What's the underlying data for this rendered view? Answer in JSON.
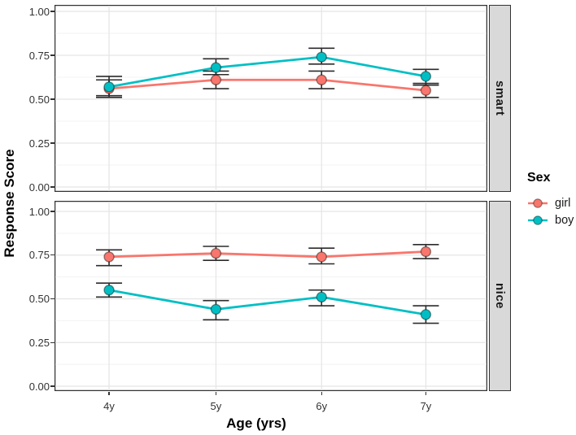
{
  "chart_data": {
    "type": "line",
    "title": "",
    "xlabel": "Age (yrs)",
    "ylabel": "Response Score",
    "categories": [
      "4y",
      "5y",
      "6y",
      "7y"
    ],
    "ylim": [
      0,
      1
    ],
    "y_ticks": [
      1.0,
      0.75,
      0.5,
      0.25,
      0.0
    ],
    "y_tick_labels": [
      "1.00",
      "0.75",
      "0.50",
      "0.25",
      "0.00"
    ],
    "y_minor_ticks": [
      0.875,
      0.625,
      0.375,
      0.125
    ],
    "grid": true,
    "error_bars": true,
    "legend_title": "Sex",
    "legend_position": "right",
    "facets": [
      {
        "label": "smart",
        "series": [
          {
            "name": "girl",
            "color": "#F8766D",
            "values": [
              0.56,
              0.61,
              0.61,
              0.55
            ],
            "ymin": [
              0.51,
              0.56,
              0.56,
              0.51
            ],
            "ymax": [
              0.61,
              0.66,
              0.66,
              0.59
            ]
          },
          {
            "name": "boy",
            "color": "#00BFC4",
            "values": [
              0.57,
              0.68,
              0.74,
              0.63
            ],
            "ymin": [
              0.52,
              0.64,
              0.7,
              0.58
            ],
            "ymax": [
              0.63,
              0.73,
              0.79,
              0.67
            ]
          }
        ]
      },
      {
        "label": "nice",
        "series": [
          {
            "name": "girl",
            "color": "#F8766D",
            "values": [
              0.74,
              0.76,
              0.74,
              0.77
            ],
            "ymin": [
              0.69,
              0.72,
              0.7,
              0.73
            ],
            "ymax": [
              0.78,
              0.8,
              0.79,
              0.81
            ]
          },
          {
            "name": "boy",
            "color": "#00BFC4",
            "values": [
              0.55,
              0.44,
              0.51,
              0.41
            ],
            "ymin": [
              0.51,
              0.38,
              0.46,
              0.36
            ],
            "ymax": [
              0.59,
              0.49,
              0.55,
              0.46
            ]
          }
        ]
      }
    ]
  },
  "legend": {
    "title": "Sex",
    "entries": [
      {
        "label": "girl",
        "color": "#F8766D"
      },
      {
        "label": "boy",
        "color": "#00BFC4"
      }
    ]
  },
  "style_colors": {
    "girl": "#F8766D",
    "boy": "#00BFC4",
    "strip_bg": "#d9d9d9",
    "panel_border": "#333333",
    "grid_major": "#e5e5e5",
    "grid_minor": "#f3f3f3",
    "errorbar": "#2b2b2b",
    "point_stroke": "rgba(0,0,0,0.4)",
    "tick": "#333333"
  }
}
